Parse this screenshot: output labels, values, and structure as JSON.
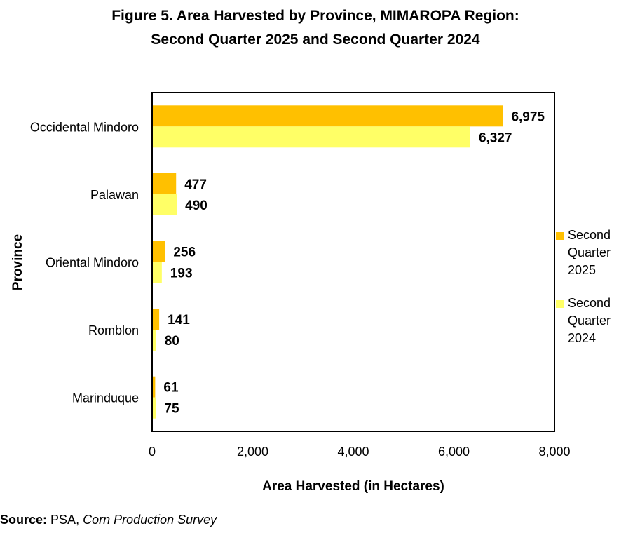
{
  "title": {
    "line1": "Figure 5. Area Harvested by Province, MIMAROPA Region:",
    "line2": "Second Quarter 2025 and Second Quarter 2024"
  },
  "source": {
    "label": "Source:",
    "org": "PSA,",
    "survey": "Corn Production Survey"
  },
  "chart_data": {
    "type": "bar",
    "orientation": "horizontal",
    "categories": [
      "Occidental Mindoro",
      "Palawan",
      "Oriental Mindoro",
      "Romblon",
      "Marinduque"
    ],
    "series": [
      {
        "name": "Second Quarter 2025",
        "legend_lines": [
          "Second",
          "Quarter",
          "2025"
        ],
        "values": [
          6975,
          477,
          256,
          141,
          61
        ],
        "labels": [
          "6,975",
          "477",
          "256",
          "141",
          "61"
        ],
        "color": "#FFC000"
      },
      {
        "name": "Second Quarter 2024",
        "legend_lines": [
          "Second",
          "Quarter",
          "2024"
        ],
        "values": [
          6327,
          490,
          193,
          80,
          75
        ],
        "labels": [
          "6,327",
          "490",
          "193",
          "80",
          "75"
        ],
        "color": "#FFFF66"
      }
    ],
    "xlabel": "Area Harvested (in Hectares)",
    "ylabel": "Province",
    "xlim": [
      0,
      8000
    ],
    "xticks": [
      0,
      2000,
      4000,
      6000,
      8000
    ],
    "xtick_labels": [
      "0",
      "2,000",
      "4,000",
      "6,000",
      "8,000"
    ],
    "grid": false,
    "legend_position": "right"
  }
}
